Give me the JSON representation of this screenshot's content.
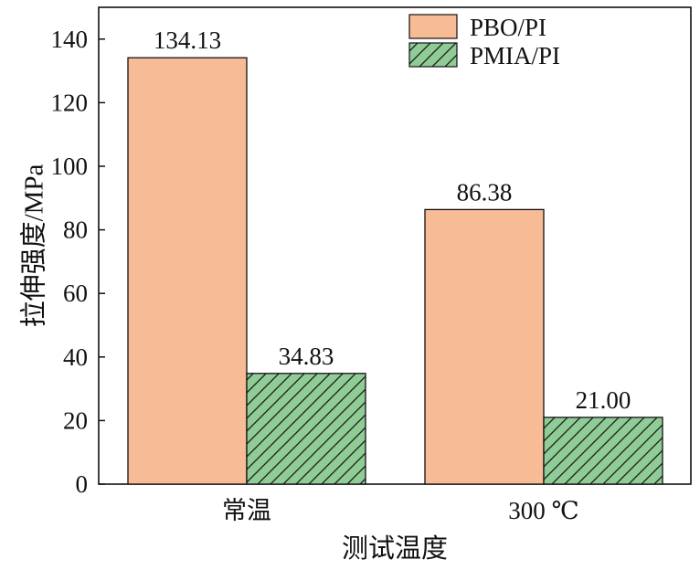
{
  "chart_data": {
    "type": "bar",
    "categories": [
      "常温",
      "300 ℃"
    ],
    "series": [
      {
        "name": "PBO/PI",
        "values": [
          134.13,
          86.38
        ],
        "labels": [
          "134.13",
          "86.38"
        ],
        "color": "#f7bc96",
        "pattern": "solid"
      },
      {
        "name": "PMIA/PI",
        "values": [
          34.83,
          21.0
        ],
        "labels": [
          "34.83",
          "21.00"
        ],
        "color": "#8fcc96",
        "pattern": "diagonal-hatch"
      }
    ],
    "xlabel": "测试温度",
    "ylabel": "拉伸强度/MPa",
    "ylim": [
      0,
      150
    ],
    "yticks": [
      "0",
      "20",
      "40",
      "60",
      "80",
      "100",
      "120",
      "140"
    ],
    "legend_position": "top-right",
    "grid": false
  }
}
